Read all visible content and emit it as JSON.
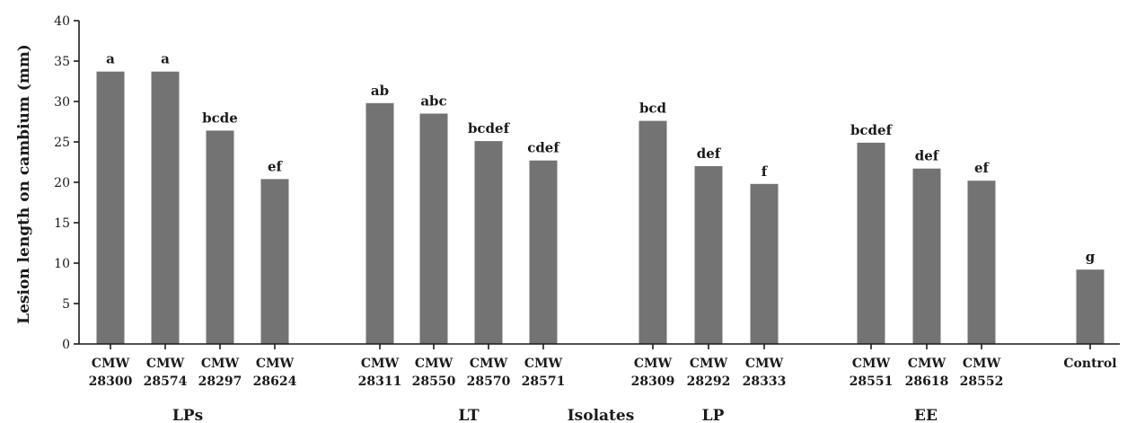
{
  "chart_data": {
    "type": "bar",
    "ylabel": "Lesion length on cambium (mm)",
    "xlabel": "Isolates",
    "ylim": [
      0,
      40
    ],
    "yticks": [
      0,
      5,
      10,
      15,
      20,
      25,
      30,
      35,
      40
    ],
    "bar_color": "#737373",
    "grid": false,
    "groups": [
      {
        "name": "LPs",
        "bars": [
          {
            "line1": "CMW",
            "line2": "28300",
            "value": 33.7,
            "letter": "a"
          },
          {
            "line1": "CMW",
            "line2": "28574",
            "value": 33.7,
            "letter": "a"
          },
          {
            "line1": "CMW",
            "line2": "28297",
            "value": 26.4,
            "letter": "bcde"
          },
          {
            "line1": "CMW",
            "line2": "28624",
            "value": 20.4,
            "letter": "ef"
          }
        ]
      },
      {
        "name": "LT",
        "bars": [
          {
            "line1": "CMW",
            "line2": "28311",
            "value": 29.8,
            "letter": "ab"
          },
          {
            "line1": "CMW",
            "line2": "28550",
            "value": 28.5,
            "letter": "abc"
          },
          {
            "line1": "CMW",
            "line2": "28570",
            "value": 25.1,
            "letter": "bcdef"
          },
          {
            "line1": "CMW",
            "line2": "28571",
            "value": 22.7,
            "letter": "cdef"
          }
        ]
      },
      {
        "name": "LP",
        "bars": [
          {
            "line1": "CMW",
            "line2": "28309",
            "value": 27.6,
            "letter": "bcd"
          },
          {
            "line1": "CMW",
            "line2": "28292",
            "value": 22.0,
            "letter": "def"
          },
          {
            "line1": "CMW",
            "line2": "28333",
            "value": 19.8,
            "letter": "f"
          }
        ]
      },
      {
        "name": "EE",
        "bars": [
          {
            "line1": "CMW",
            "line2": "28551",
            "value": 24.9,
            "letter": "bcdef"
          },
          {
            "line1": "CMW",
            "line2": "28618",
            "value": 21.7,
            "letter": "def"
          },
          {
            "line1": "CMW",
            "line2": "28552",
            "value": 20.2,
            "letter": "ef"
          }
        ]
      },
      {
        "name": "",
        "bars": [
          {
            "line1": "Control",
            "line2": "",
            "value": 9.2,
            "letter": "g"
          }
        ]
      }
    ]
  }
}
